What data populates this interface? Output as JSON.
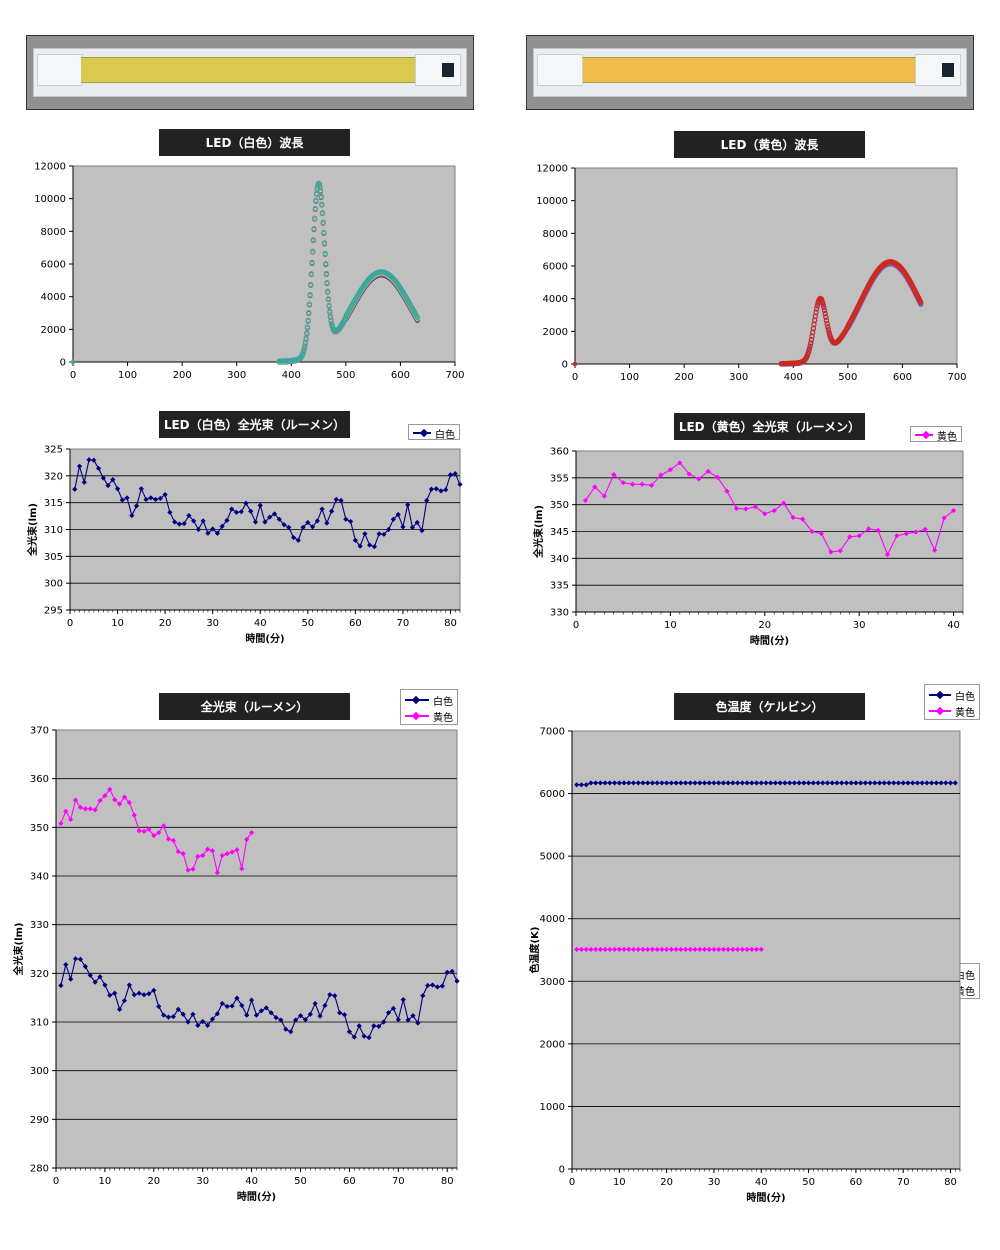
{
  "colors": {
    "white": "#000080",
    "yellow": "#ff00ff",
    "plot_bg": "#c0c0c0",
    "title_bg": "#222222"
  },
  "photos": [
    {
      "strip_color": "#d9c94e"
    },
    {
      "strip_color": "#f0bd4a"
    }
  ],
  "titles": {
    "spec_white": "LED（白色）波長",
    "spec_yellow": "LED（黄色）波長",
    "lum_white": "LED（白色）全光束（ルーメン）",
    "lum_yellow": "LED（黄色）全光束（ルーメン）",
    "lum_both": "全光束（ルーメン）",
    "ct": "色温度（ケルビン）"
  },
  "legend": {
    "white": "白色",
    "yellow": "黄色"
  },
  "chart_data": [
    {
      "id": "spec_white",
      "type": "line",
      "xlim": [
        0,
        700
      ],
      "ylim": [
        0,
        12000
      ],
      "xticks": [
        "0",
        "100",
        "200",
        "300",
        "400",
        "500",
        "600",
        "700"
      ],
      "yticks": [
        "0",
        "2000",
        "4000",
        "6000",
        "8000",
        "10000",
        "12000"
      ],
      "peaks": {
        "blue_nm": 450,
        "blue_value": 10600,
        "valley_nm": 487,
        "valley_value": 1300,
        "broad_nm": 565,
        "broad_value": 5400,
        "end_nm": 632,
        "end_value": 2700,
        "start_nm": 378
      },
      "series_colors": [
        "#8b1a6b",
        "#4f7fb8",
        "#c9cc3a",
        "#3aa6a0"
      ]
    },
    {
      "id": "spec_yellow",
      "type": "line",
      "xlim": [
        0,
        700
      ],
      "ylim": [
        0,
        12000
      ],
      "xticks": [
        "0",
        "100",
        "200",
        "300",
        "400",
        "500",
        "600",
        "700"
      ],
      "yticks": [
        "0",
        "2000",
        "4000",
        "6000",
        "8000",
        "10000",
        "12000"
      ],
      "peaks": {
        "blue_nm": 449,
        "blue_value": 3900,
        "valley_nm": 487,
        "valley_value": 650,
        "broad_nm": 578,
        "broad_value": 6200,
        "end_nm": 634,
        "end_value": 4300,
        "start_nm": 378
      },
      "series_colors": [
        "#6a5acd",
        "#9b4f96",
        "#cc2a1e"
      ]
    },
    {
      "id": "lum_white",
      "type": "line",
      "xlabel": "時間(分)",
      "ylabel": "全光束(lm)",
      "xlim": [
        0,
        82
      ],
      "ylim": [
        295,
        325
      ],
      "xticks": [
        "0",
        "10",
        "20",
        "30",
        "40",
        "50",
        "60",
        "70",
        "80"
      ],
      "yticks": [
        "295",
        "300",
        "305",
        "310",
        "315",
        "320",
        "325"
      ],
      "series": [
        {
          "name": "白色",
          "color_key": "white"
        }
      ]
    },
    {
      "id": "lum_yellow",
      "type": "line",
      "xlabel": "時間(分)",
      "ylabel": "全光束(lm)",
      "xlim": [
        0,
        41
      ],
      "ylim": [
        330,
        360
      ],
      "xticks": [
        "0",
        "10",
        "20",
        "30",
        "40"
      ],
      "yticks": [
        "330",
        "335",
        "340",
        "345",
        "350",
        "355",
        "360"
      ],
      "series": [
        {
          "name": "黄色",
          "color_key": "yellow"
        }
      ]
    },
    {
      "id": "lum_both",
      "type": "line",
      "xlabel": "時間(分)",
      "ylabel": "全光束(lm)",
      "xlim": [
        0,
        82
      ],
      "ylim": [
        280,
        370
      ],
      "xticks": [
        "0",
        "10",
        "20",
        "30",
        "40",
        "50",
        "60",
        "70",
        "80"
      ],
      "yticks": [
        "280",
        "290",
        "300",
        "310",
        "320",
        "330",
        "340",
        "350",
        "360",
        "370"
      ],
      "series": [
        {
          "name": "白色",
          "color_key": "white"
        },
        {
          "name": "黄色",
          "color_key": "yellow"
        }
      ]
    },
    {
      "id": "ct",
      "type": "line",
      "xlabel": "時間(分)",
      "ylabel": "色温度(K)",
      "xlim": [
        0,
        82
      ],
      "ylim": [
        0,
        7000
      ],
      "xticks": [
        "0",
        "10",
        "20",
        "30",
        "40",
        "50",
        "60",
        "70",
        "80"
      ],
      "yticks": [
        "0",
        "1000",
        "2000",
        "3000",
        "4000",
        "5000",
        "6000",
        "7000"
      ],
      "series": [
        {
          "name": "白色",
          "color_key": "white",
          "x": [
            1,
            81
          ],
          "first": 6140,
          "value": 6170
        },
        {
          "name": "黄色",
          "color_key": "yellow",
          "x": [
            1,
            40
          ],
          "value": 3510
        }
      ]
    }
  ],
  "lumens": {
    "white": [
      317.5,
      321.8,
      318.8,
      323.0,
      322.9,
      321.4,
      319.6,
      318.2,
      319.3,
      317.6,
      315.5,
      315.9,
      312.6,
      314.4,
      317.6,
      315.6,
      315.9,
      315.6,
      315.8,
      316.5,
      313.2,
      311.4,
      311.0,
      311.1,
      312.6,
      311.6,
      310.0,
      311.6,
      309.3,
      310.1,
      309.3,
      310.6,
      311.7,
      313.8,
      313.2,
      313.3,
      314.9,
      313.4,
      311.4,
      314.5,
      311.4,
      312.3,
      312.9,
      311.9,
      310.9,
      310.4,
      308.5,
      308.0,
      310.4,
      311.3,
      310.5,
      311.6,
      313.8,
      311.2,
      313.4,
      315.6,
      315.4,
      311.9,
      311.5,
      308.0,
      306.9,
      309.2,
      307.1,
      306.8,
      309.2,
      309.1,
      310.0,
      311.9,
      312.8,
      310.5,
      314.6,
      310.4,
      311.3,
      309.8,
      315.4,
      317.5,
      317.6,
      317.2,
      317.4,
      320.2,
      320.4,
      318.4
    ],
    "yellow": [
      350.8,
      353.3,
      351.6,
      355.6,
      354.1,
      353.8,
      353.8,
      353.6,
      355.5,
      356.5,
      357.8,
      355.7,
      354.8,
      356.2,
      355.1,
      352.5,
      349.3,
      349.2,
      349.6,
      348.3,
      348.9,
      350.3,
      347.6,
      347.3,
      345.0,
      344.6,
      341.2,
      341.4,
      344.0,
      344.2,
      345.5,
      345.2,
      340.7,
      344.2,
      344.6,
      344.9,
      345.4,
      341.5,
      347.5,
      348.9
    ]
  }
}
